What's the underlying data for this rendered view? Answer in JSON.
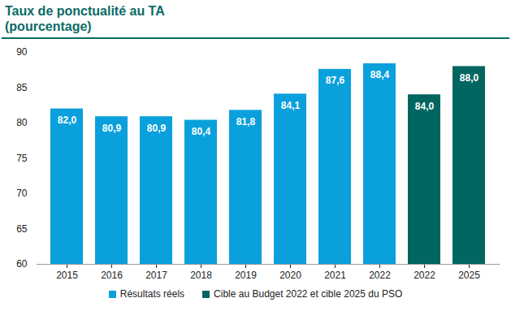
{
  "chart_data": {
    "type": "bar",
    "title": "Taux de ponctualité au TA",
    "subtitle": "(pourcentage)",
    "categories": [
      "2015",
      "2016",
      "2017",
      "2018",
      "2019",
      "2020",
      "2021",
      "2022",
      "2022",
      "2025"
    ],
    "series": [
      {
        "name": "Résultats réels",
        "color": "#0aa0dc",
        "values": [
          82.0,
          80.9,
          80.9,
          80.4,
          81.8,
          84.1,
          87.6,
          88.4,
          null,
          null
        ],
        "value_labels": [
          "82,0",
          "80,9",
          "80,9",
          "80,4",
          "81,8",
          "84,1",
          "87,6",
          "88,4",
          null,
          null
        ]
      },
      {
        "name": "Cible au Budget 2022 et cible 2025 du PSO",
        "color": "#00665f",
        "values": [
          null,
          null,
          null,
          null,
          null,
          null,
          null,
          null,
          84.0,
          88.0
        ],
        "value_labels": [
          null,
          null,
          null,
          null,
          null,
          null,
          null,
          null,
          "84,0",
          "88,0"
        ]
      }
    ],
    "ylim": [
      60,
      90
    ],
    "yticks": [
      60,
      65,
      70,
      75,
      80,
      85,
      90
    ],
    "grid": false,
    "data_labels": true,
    "legend": "bottom"
  }
}
